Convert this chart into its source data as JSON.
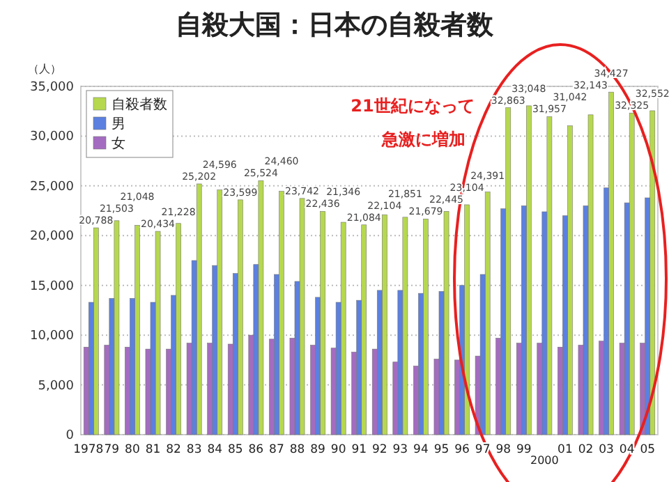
{
  "chart_data": {
    "type": "bar",
    "title": "自殺大国：日本の自殺者数",
    "ylabel": "（人）",
    "categories": [
      "1978",
      "79",
      "80",
      "81",
      "82",
      "83",
      "84",
      "85",
      "86",
      "87",
      "88",
      "89",
      "90",
      "91",
      "92",
      "93",
      "94",
      "95",
      "96",
      "97",
      "98",
      "99",
      "2000",
      "01",
      "02",
      "03",
      "04",
      "05"
    ],
    "series": [
      {
        "name": "自殺者数",
        "color": "#b6d84f",
        "values": [
          20788,
          21503,
          21048,
          20434,
          21228,
          25202,
          24596,
          23599,
          25524,
          24460,
          23742,
          22436,
          21346,
          21084,
          22104,
          21851,
          21679,
          22445,
          23104,
          24391,
          32863,
          33048,
          31957,
          31042,
          32143,
          34427,
          32325,
          32552
        ],
        "value_labels": [
          "20,788",
          "21,503",
          "21,048",
          "20,434",
          "21,228",
          "25,202",
          "24,596",
          "23,599",
          "25,524",
          "24,460",
          "23,742",
          "22,436",
          "21,346",
          "21,084",
          "22,104",
          "21,851",
          "21,679",
          "22,445",
          "23,104",
          "24,391",
          "32,863",
          "33,048",
          "31,957",
          "31,042",
          "32,143",
          "34,427",
          "32,325",
          "32,552"
        ]
      },
      {
        "name": "男",
        "color": "#5b80e0",
        "values": [
          13300,
          13700,
          13700,
          13300,
          14000,
          17500,
          17000,
          16200,
          17100,
          16100,
          15400,
          13800,
          13300,
          13500,
          14500,
          14500,
          14200,
          14400,
          15000,
          16100,
          22700,
          23000,
          22400,
          22000,
          23000,
          24800,
          23300,
          23800
        ]
      },
      {
        "name": "女",
        "color": "#a46cc0",
        "values": [
          8800,
          9000,
          8800,
          8600,
          8600,
          9200,
          9200,
          9100,
          10000,
          9600,
          9700,
          9000,
          8700,
          8300,
          8600,
          7300,
          6900,
          7600,
          7500,
          7900,
          9700,
          9200,
          9200,
          8800,
          9000,
          9400,
          9200,
          9200
        ]
      }
    ],
    "ylim": [
      0,
      35000
    ],
    "yticks": [
      {
        "value": 0,
        "label": "0"
      },
      {
        "value": 5000,
        "label": "5,000"
      },
      {
        "value": 10000,
        "label": "10,000"
      },
      {
        "value": 15000,
        "label": "15,000"
      },
      {
        "value": 20000,
        "label": "20,000"
      },
      {
        "value": 25000,
        "label": "25,000"
      },
      {
        "value": 30000,
        "label": "30,000"
      },
      {
        "value": 35000,
        "label": "35,000"
      }
    ],
    "grid": "y",
    "legend": "top left",
    "annotations": [
      "21世紀になって",
      "急激に増加"
    ]
  }
}
